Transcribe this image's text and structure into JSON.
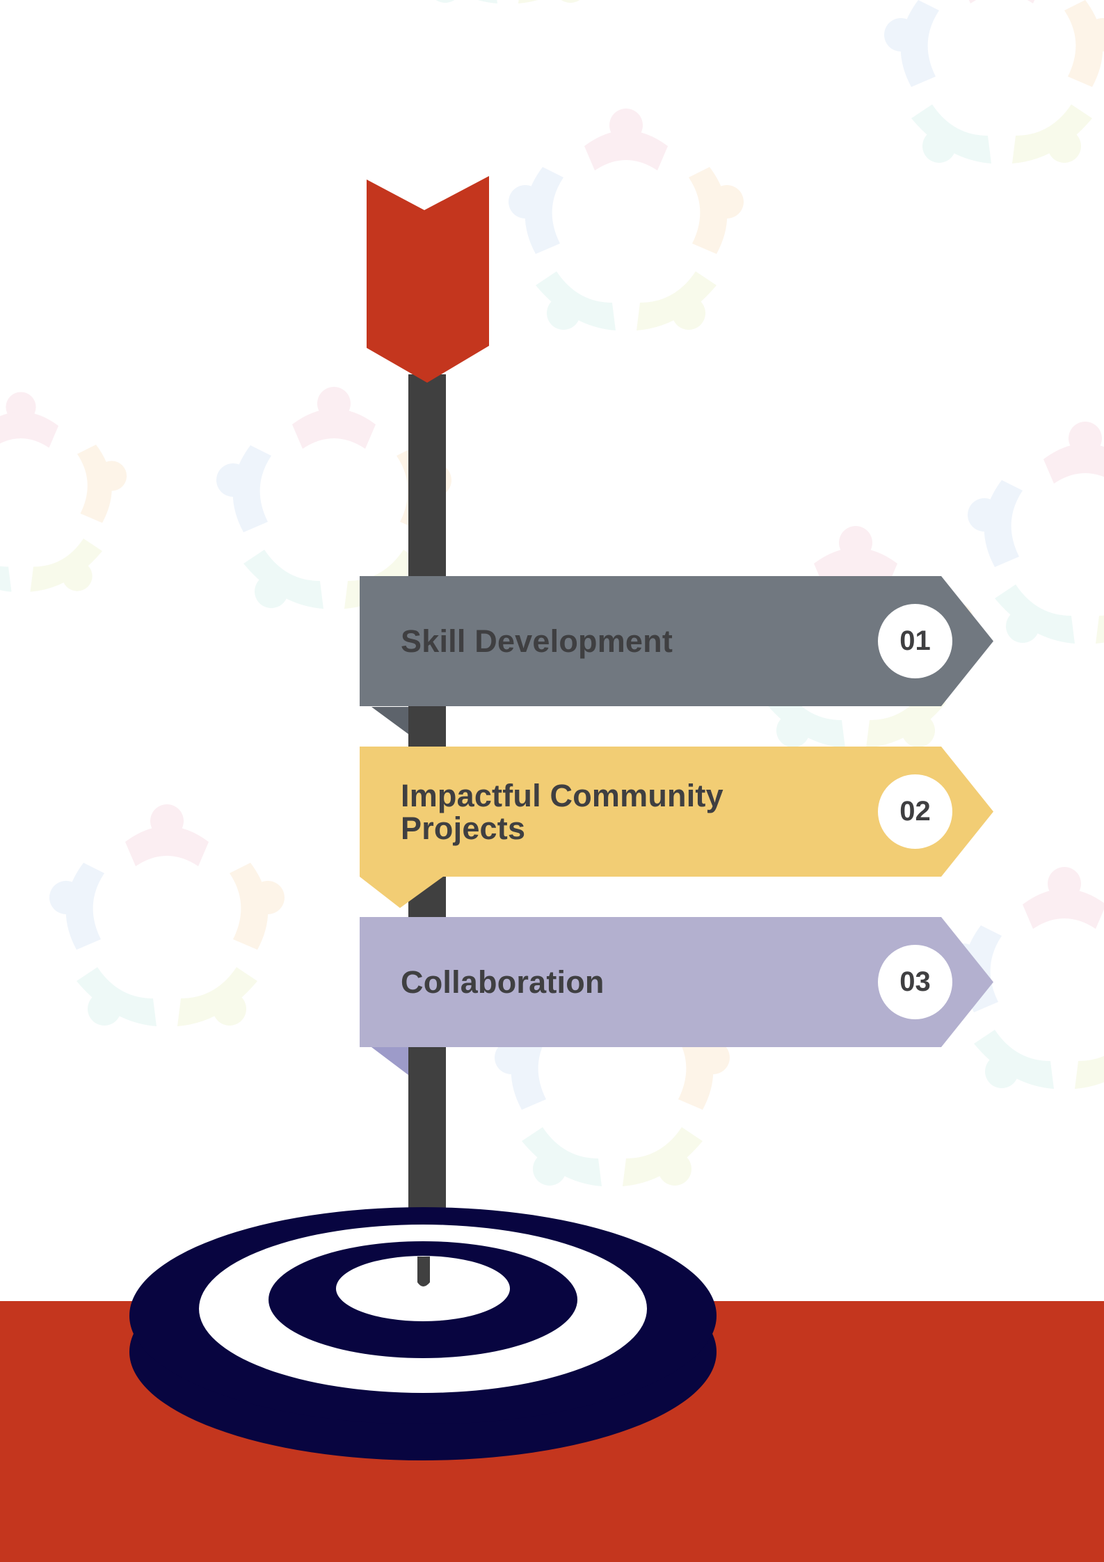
{
  "colors": {
    "accent_red": "#c4361e",
    "pole": "#404040",
    "target_navy": "#080540",
    "banner_1": "#717880",
    "banner_2": "#f2cd74",
    "banner_3": "#b3b0cf",
    "text": "#3f3f41",
    "badge_bg": "#ffffff"
  },
  "banners": [
    {
      "label": "Skill Development",
      "number": "01",
      "color": "#717880",
      "tab_color": "#5d636b"
    },
    {
      "label": "Impactful Community Projects",
      "number": "02",
      "color": "#f2cd74",
      "tab_color": "#f2cd74"
    },
    {
      "label": "Collaboration",
      "number": "03",
      "color": "#b3b0cf",
      "tab_color": "#9d9bc9"
    }
  ],
  "icons": {
    "flag": "arrow-fletching-icon",
    "target": "bullseye-target-icon",
    "watermark": "people-circle-watermark"
  }
}
